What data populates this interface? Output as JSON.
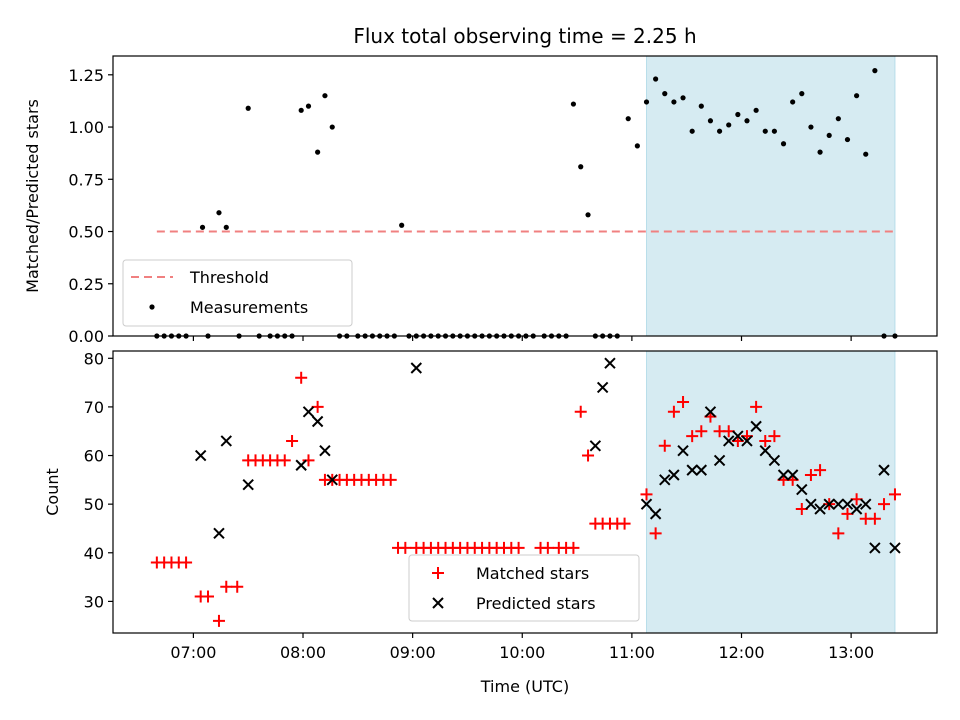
{
  "chart_data": [
    {
      "type": "scatter",
      "title": "Flux total observing time = 2.25 h",
      "ylabel": "Matched/Predicted stars",
      "xlabel": "",
      "ylim": [
        0,
        1.34
      ],
      "yticks": [
        "0.00",
        "0.25",
        "0.50",
        "0.75",
        "1.00",
        "1.25"
      ],
      "ytick_values": [
        0,
        0.25,
        0.5,
        0.75,
        1.0,
        1.25
      ],
      "shaded_span": [
        "11:08",
        "13:24"
      ],
      "shaded_color": "#add8e6",
      "threshold": {
        "name": "Threshold",
        "value": 0.5,
        "x_range": [
          "06:40",
          "13:24"
        ],
        "color": "#f08080",
        "style": "dashed"
      },
      "legend": [
        "Threshold",
        "Measurements"
      ],
      "legend_position": "lower-left",
      "series": [
        {
          "name": "Measurements",
          "color": "#000000",
          "x": [
            "06:40",
            "06:44",
            "06:48",
            "06:52",
            "06:56",
            "07:05",
            "07:08",
            "07:14",
            "07:18",
            "07:25",
            "07:30",
            "07:36",
            "07:42",
            "07:46",
            "07:50",
            "07:54",
            "07:59",
            "08:03",
            "08:08",
            "08:12",
            "08:16",
            "08:20",
            "08:24",
            "08:30",
            "08:34",
            "08:38",
            "08:42",
            "08:46",
            "08:50",
            "08:54",
            "08:58",
            "09:02",
            "09:06",
            "09:10",
            "09:14",
            "09:18",
            "09:22",
            "09:26",
            "09:30",
            "09:34",
            "09:38",
            "09:42",
            "09:46",
            "09:50",
            "09:54",
            "09:58",
            "10:02",
            "10:06",
            "10:12",
            "10:16",
            "10:20",
            "10:24",
            "10:28",
            "10:32",
            "10:36",
            "10:40",
            "10:44",
            "10:48",
            "10:52",
            "10:58",
            "11:03",
            "11:08",
            "11:13",
            "11:18",
            "11:23",
            "11:28",
            "11:33",
            "11:38",
            "11:43",
            "11:48",
            "11:53",
            "11:58",
            "12:03",
            "12:08",
            "12:13",
            "12:18",
            "12:23",
            "12:28",
            "12:33",
            "12:38",
            "12:43",
            "12:48",
            "12:53",
            "12:58",
            "13:03",
            "13:08",
            "13:13",
            "13:18",
            "13:24"
          ],
          "y": [
            0,
            0,
            0,
            0,
            0,
            0.52,
            0,
            0.59,
            0.52,
            0,
            1.09,
            0,
            0,
            0,
            0,
            0,
            1.08,
            1.1,
            0.88,
            1.15,
            1.0,
            0,
            0,
            0,
            0,
            0,
            0,
            0,
            0,
            0.53,
            0,
            0,
            0,
            0,
            0,
            0,
            0,
            0,
            0,
            0,
            0,
            0,
            0,
            0,
            0,
            0,
            0,
            0,
            0,
            0,
            0,
            0,
            1.11,
            0.81,
            0.58,
            0,
            0,
            0,
            0,
            1.04,
            0.91,
            1.12,
            1.23,
            1.16,
            1.12,
            1.14,
            0.98,
            1.1,
            1.03,
            0.98,
            1.01,
            1.06,
            1.03,
            1.08,
            0.98,
            0.98,
            0.92,
            1.12,
            1.16,
            1.0,
            0.88,
            0.96,
            1.04,
            0.94,
            1.15,
            0.87,
            1.27,
            0,
            0
          ]
        }
      ]
    },
    {
      "type": "scatter",
      "title": "",
      "xlabel": "Time (UTC)",
      "ylabel": "Count",
      "ylim": [
        23.5,
        81.5
      ],
      "yticks": [
        "30",
        "40",
        "50",
        "60",
        "70",
        "80"
      ],
      "ytick_values": [
        30,
        40,
        50,
        60,
        70,
        80
      ],
      "xlim": [
        "06:16",
        "13:47"
      ],
      "xticks": [
        "07:00",
        "08:00",
        "09:00",
        "10:00",
        "11:00",
        "12:00",
        "13:00"
      ],
      "shaded_span": [
        "11:08",
        "13:24"
      ],
      "shaded_color": "#add8e6",
      "legend": [
        "Matched stars",
        "Predicted stars"
      ],
      "legend_position": "lower-center",
      "series": [
        {
          "name": "Matched stars",
          "color": "#ff0000",
          "marker": "plus",
          "x": [
            "06:40",
            "06:44",
            "06:48",
            "06:52",
            "06:56",
            "07:04",
            "07:08",
            "07:14",
            "07:18",
            "07:24",
            "07:30",
            "07:34",
            "07:38",
            "07:42",
            "07:46",
            "07:50",
            "07:54",
            "07:59",
            "08:03",
            "08:08",
            "08:12",
            "08:16",
            "08:20",
            "08:24",
            "08:28",
            "08:32",
            "08:36",
            "08:40",
            "08:44",
            "08:48",
            "08:52",
            "08:56",
            "09:02",
            "09:06",
            "09:10",
            "09:14",
            "09:18",
            "09:22",
            "09:26",
            "09:30",
            "09:34",
            "09:38",
            "09:42",
            "09:46",
            "09:50",
            "09:54",
            "09:58",
            "10:10",
            "10:14",
            "10:20",
            "10:24",
            "10:28",
            "10:32",
            "10:36",
            "10:40",
            "10:44",
            "10:48",
            "10:52",
            "10:56",
            "11:08",
            "11:13",
            "11:18",
            "11:23",
            "11:28",
            "11:33",
            "11:38",
            "11:43",
            "11:48",
            "11:53",
            "11:58",
            "12:03",
            "12:08",
            "12:13",
            "12:18",
            "12:23",
            "12:28",
            "12:33",
            "12:38",
            "12:43",
            "12:48",
            "12:53",
            "12:58",
            "13:03",
            "13:08",
            "13:13",
            "13:18",
            "13:24"
          ],
          "y": [
            38,
            38,
            38,
            38,
            38,
            31,
            31,
            26,
            33,
            33,
            59,
            59,
            59,
            59,
            59,
            59,
            63,
            76,
            59,
            70,
            55,
            55,
            55,
            55,
            55,
            55,
            55,
            55,
            55,
            55,
            41,
            41,
            41,
            41,
            41,
            41,
            41,
            41,
            41,
            41,
            41,
            41,
            41,
            41,
            41,
            41,
            41,
            41,
            41,
            41,
            41,
            41,
            69,
            60,
            46,
            46,
            46,
            46,
            46,
            52,
            44,
            62,
            69,
            71,
            64,
            65,
            68,
            65,
            65,
            63,
            64,
            70,
            63,
            64,
            55,
            55,
            49,
            56,
            57,
            50,
            44,
            48,
            51,
            47,
            47,
            50,
            52
          ]
        },
        {
          "name": "Predicted stars",
          "color": "#000000",
          "marker": "x",
          "x": [
            "07:04",
            "07:14",
            "07:18",
            "07:30",
            "07:59",
            "08:03",
            "08:08",
            "08:12",
            "08:16",
            "09:02",
            "10:40",
            "10:44",
            "10:48",
            "11:08",
            "11:13",
            "11:18",
            "11:23",
            "11:28",
            "11:33",
            "11:38",
            "11:43",
            "11:48",
            "11:53",
            "11:58",
            "12:03",
            "12:08",
            "12:13",
            "12:18",
            "12:23",
            "12:28",
            "12:33",
            "12:38",
            "12:43",
            "12:48",
            "12:53",
            "12:58",
            "13:03",
            "13:08",
            "13:13",
            "13:18",
            "13:24"
          ],
          "y": [
            60,
            44,
            63,
            54,
            58,
            69,
            67,
            61,
            55,
            78,
            62,
            74,
            79,
            50,
            48,
            55,
            56,
            61,
            57,
            57,
            69,
            59,
            63,
            64,
            63,
            66,
            61,
            59,
            56,
            56,
            53,
            50,
            49,
            50,
            50,
            50,
            49,
            50,
            41,
            57,
            41
          ]
        }
      ]
    }
  ]
}
